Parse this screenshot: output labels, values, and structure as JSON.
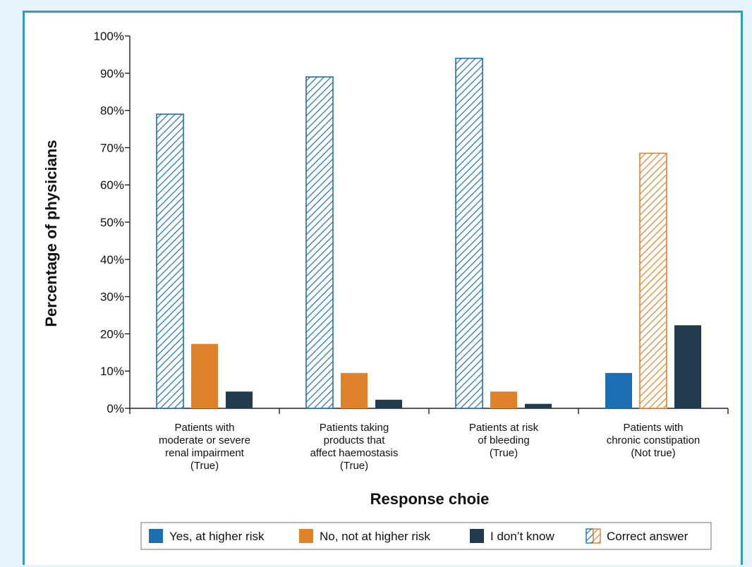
{
  "chart_data": {
    "type": "bar",
    "xlabel": "Response choie",
    "ylabel": "Percentage of physicians",
    "ylim": [
      0,
      100
    ],
    "yticks": [
      "0%",
      "10%",
      "20%",
      "30%",
      "40%",
      "50%",
      "60%",
      "70%",
      "80%",
      "90%",
      "100%"
    ],
    "grid": false,
    "legend_position": "bottom",
    "categories": [
      {
        "lines": [
          "Patients with",
          "moderate or severe",
          "renal impairment",
          "(True)"
        ],
        "correct": "Yes, at higher risk"
      },
      {
        "lines": [
          "Patients taking",
          "products that",
          "affect haemostasis",
          "(True)"
        ],
        "correct": "Yes, at higher risk"
      },
      {
        "lines": [
          "Patients at risk",
          "of bleeding",
          "(True)"
        ],
        "correct": "Yes, at higher risk"
      },
      {
        "lines": [
          "Patients with",
          "chronic constipation",
          "(Not true)"
        ],
        "correct": "No, not at higher risk"
      }
    ],
    "series": [
      {
        "name": "Yes, at higher risk",
        "color": "#1d6fb3",
        "values": [
          79,
          89,
          94,
          9.5
        ]
      },
      {
        "name": "No, not at higher risk",
        "color": "#e0812b",
        "values": [
          17.3,
          9.5,
          4.5,
          68.5
        ]
      },
      {
        "name": "I don’t know",
        "color": "#1f3b4d",
        "values": [
          4.5,
          2.3,
          1.2,
          22.3
        ]
      }
    ],
    "legend": {
      "items": [
        "Yes, at higher risk",
        "No, not at higher risk",
        "I don’t know",
        "Correct answer"
      ]
    }
  }
}
